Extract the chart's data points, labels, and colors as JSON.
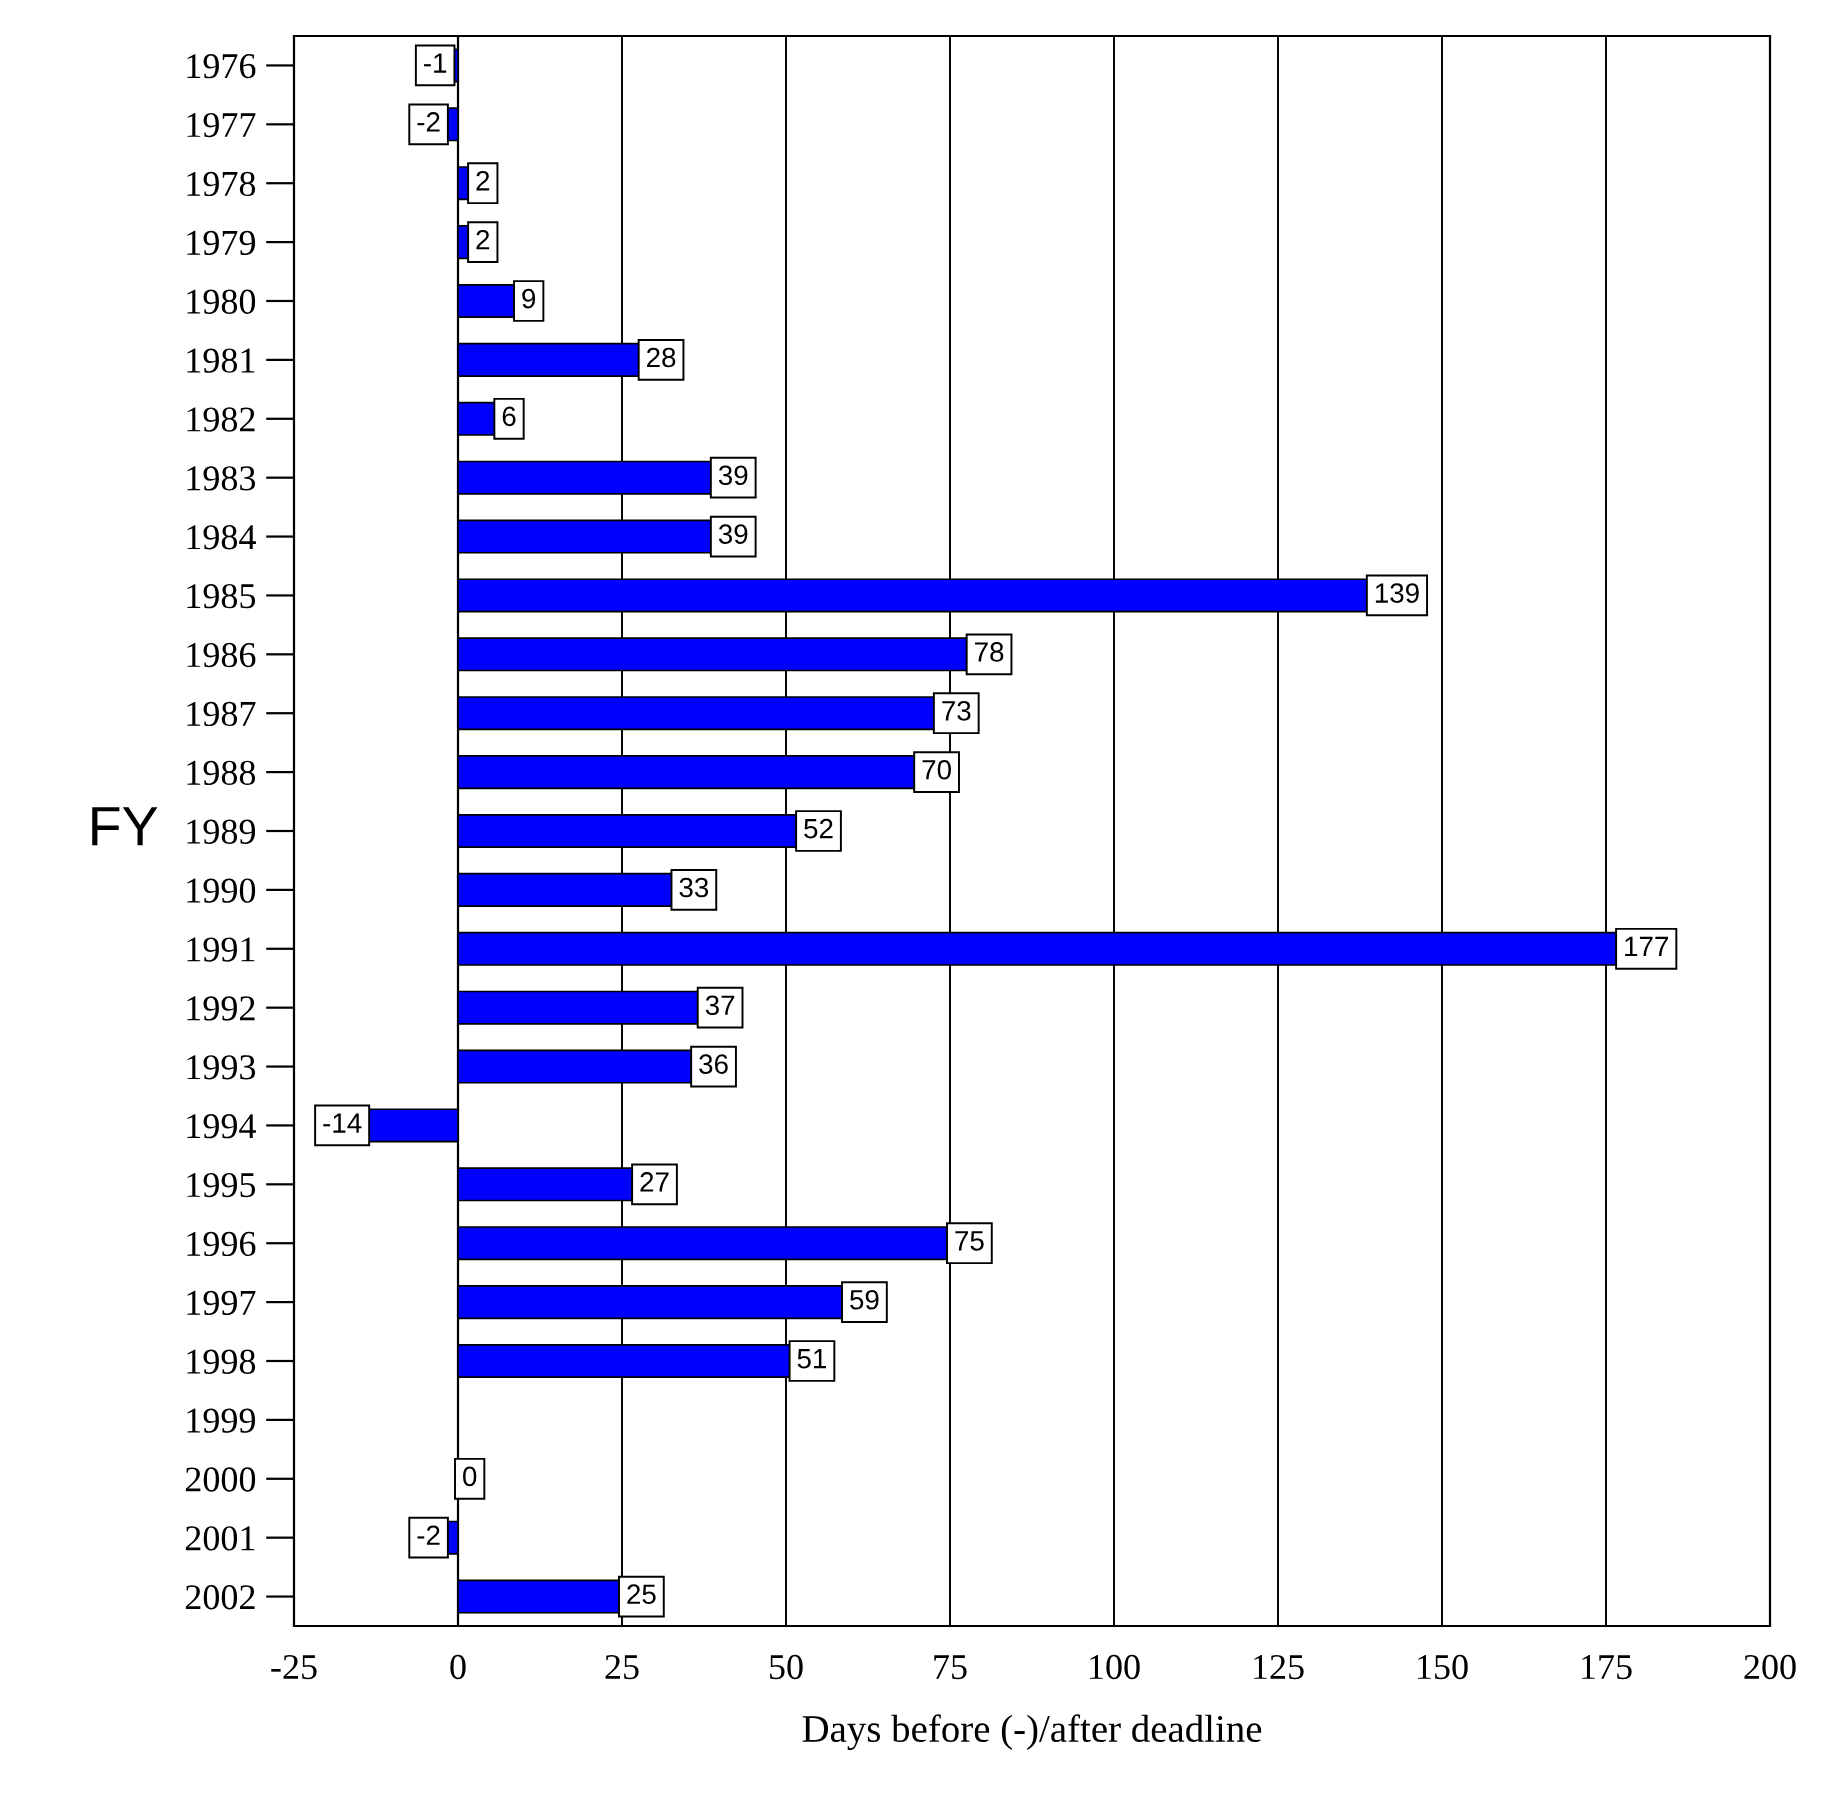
{
  "chart_data": {
    "type": "bar",
    "orientation": "horizontal",
    "xlabel": "Days before (-)/after deadline",
    "ylabel": "FY",
    "categories": [
      "1976",
      "1977",
      "1978",
      "1979",
      "1980",
      "1981",
      "1982",
      "1983",
      "1984",
      "1985",
      "1986",
      "1987",
      "1988",
      "1989",
      "1990",
      "1991",
      "1992",
      "1993",
      "1994",
      "1995",
      "1996",
      "1997",
      "1998",
      "1999",
      "2000",
      "2001",
      "2002"
    ],
    "values": [
      -1,
      -2,
      2,
      2,
      9,
      28,
      6,
      39,
      39,
      139,
      78,
      73,
      70,
      52,
      33,
      177,
      37,
      36,
      -14,
      27,
      75,
      59,
      51,
      null,
      0,
      -2,
      25
    ],
    "color": "#0000ff",
    "xlim": [
      -25,
      200
    ],
    "xticks": [
      -25,
      0,
      25,
      50,
      75,
      100,
      125,
      150,
      175,
      200
    ],
    "grid": "x",
    "data_labels": true
  }
}
